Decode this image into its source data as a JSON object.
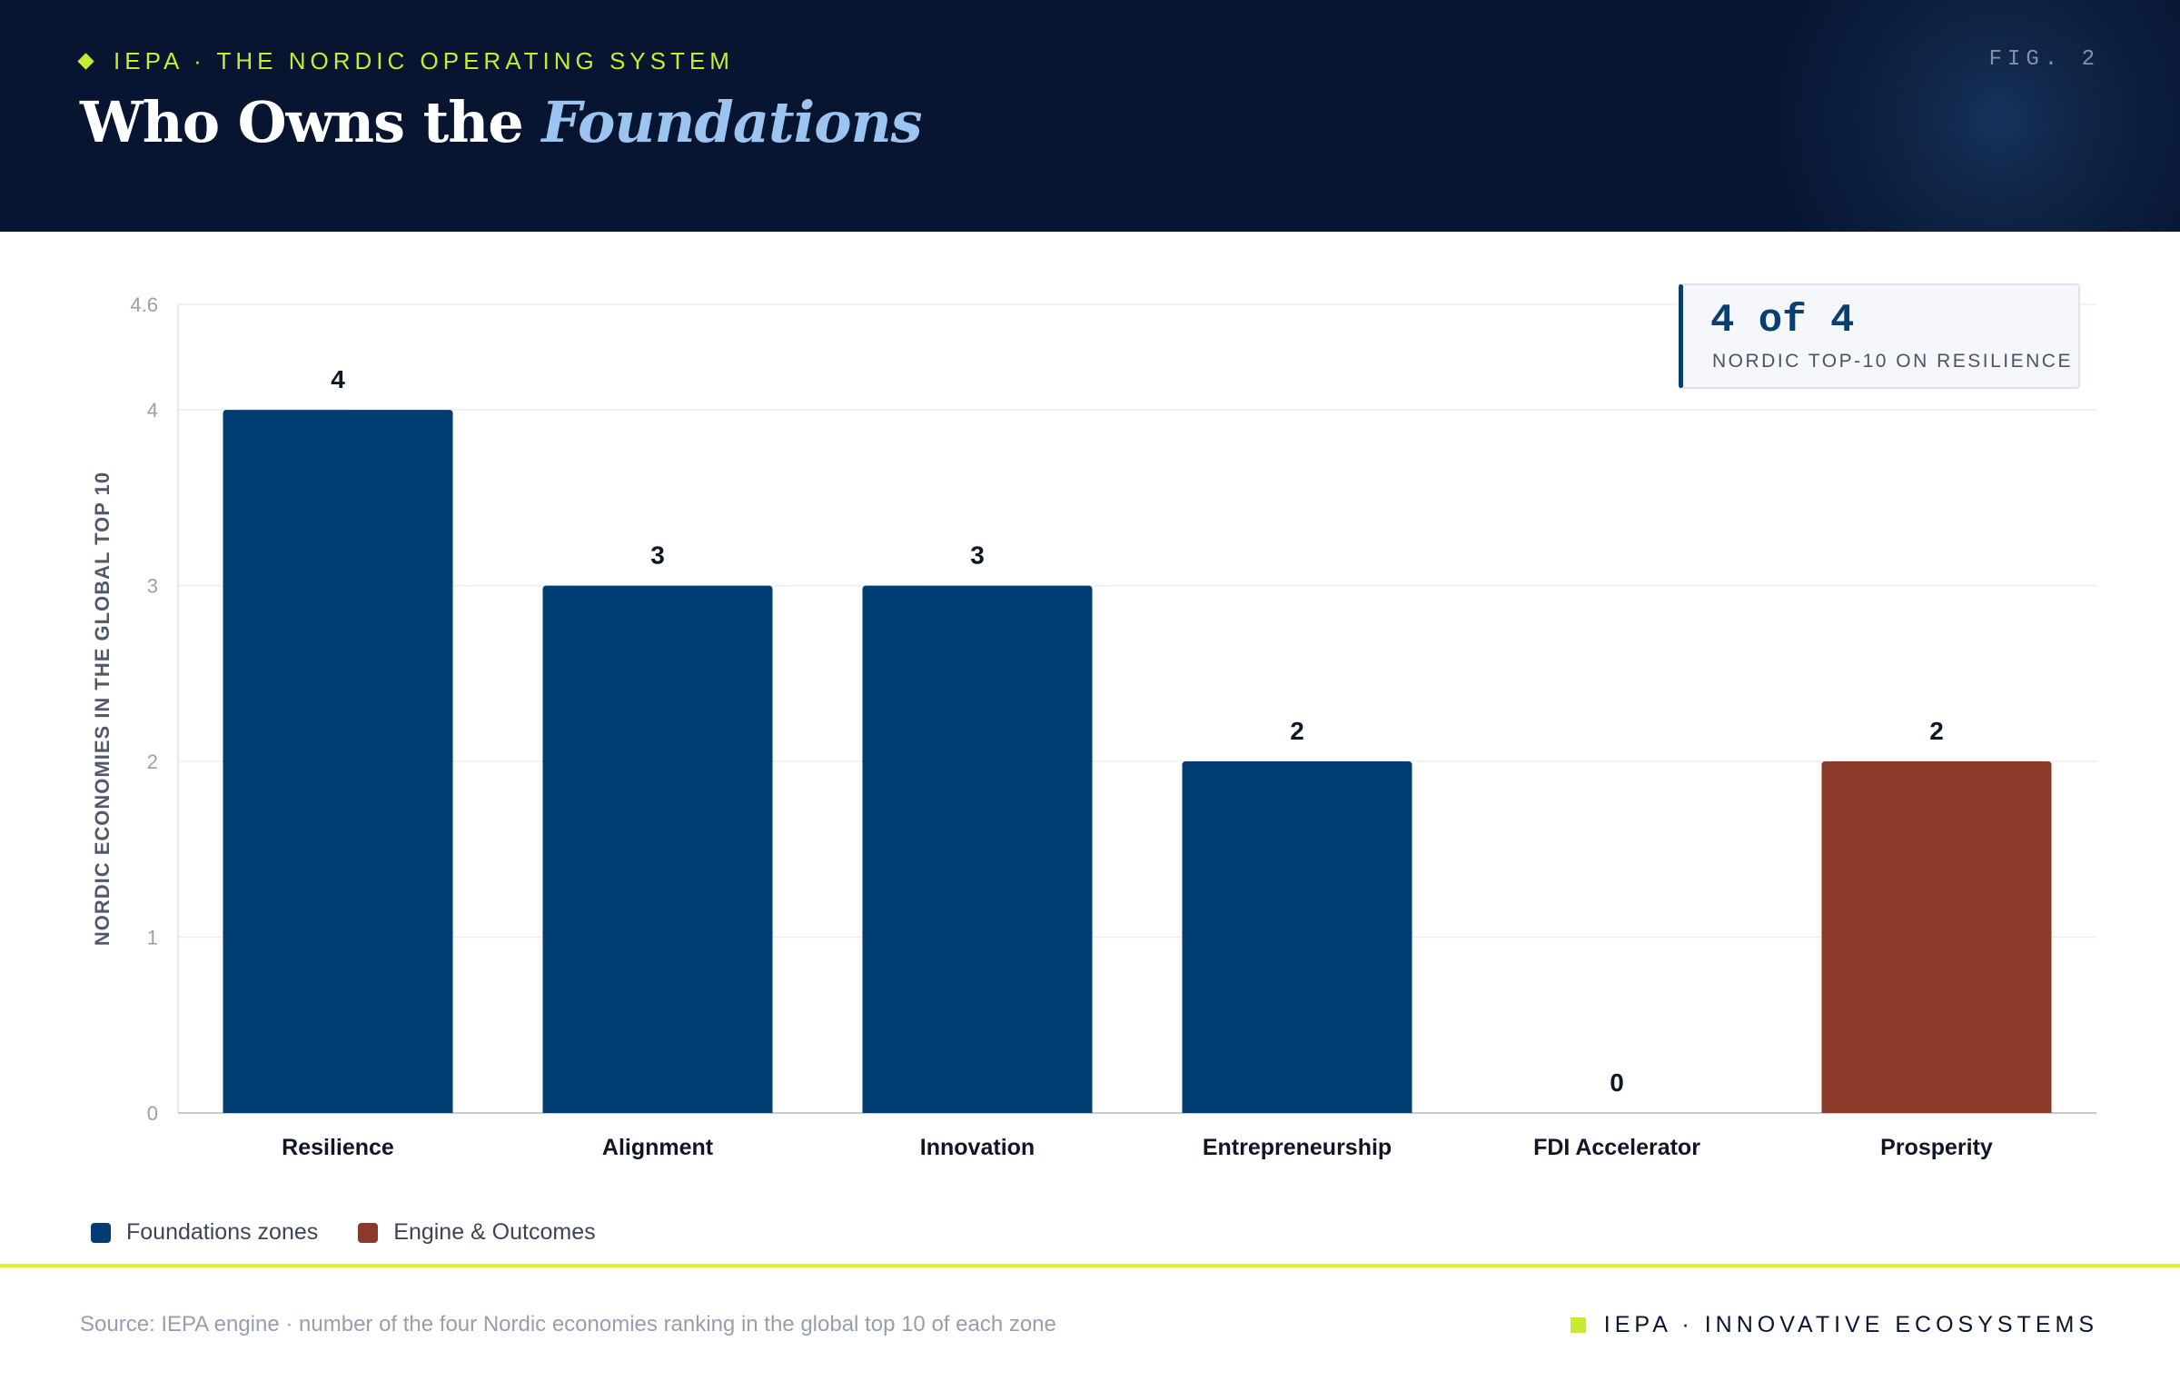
{
  "header": {
    "kicker": "IEPA · THE NORDIC OPERATING SYSTEM",
    "fig_label": "FIG. 2",
    "title_main": "Who Owns the",
    "title_accent": "Foundations"
  },
  "badge": {
    "value": "4 of 4",
    "caption": "NORDIC TOP-10 ON RESILIENCE"
  },
  "chart_data": {
    "type": "bar",
    "categories": [
      "Resilience",
      "Alignment",
      "Innovation",
      "Entrepreneurship",
      "FDI Accelerator",
      "Prosperity"
    ],
    "values": [
      4,
      3,
      3,
      2,
      0,
      2
    ],
    "groups": [
      "Foundations zones",
      "Foundations zones",
      "Foundations zones",
      "Foundations zones",
      "Foundations zones",
      "Engine & Outcomes"
    ],
    "title": "",
    "xlabel": "",
    "ylabel": "NORDIC ECONOMIES IN THE GLOBAL TOP 10",
    "ylim": [
      0,
      4.6
    ],
    "yticks": [
      0,
      1,
      2,
      3,
      4,
      4.6
    ],
    "ytick_labels": [
      "0",
      "1",
      "2",
      "3",
      "4",
      "4.6"
    ],
    "grid": true,
    "legend": [
      "Foundations zones",
      "Engine & Outcomes"
    ],
    "legend_position": "bottom-left",
    "colors": {
      "Foundations zones": "#003d73",
      "Engine & Outcomes": "#8b3a29"
    }
  },
  "footer": {
    "source": "Source: IEPA engine · number of the four Nordic economies ranking in the global top 10 of each zone",
    "brand": "IEPA · INNOVATIVE ECOSYSTEMS"
  }
}
